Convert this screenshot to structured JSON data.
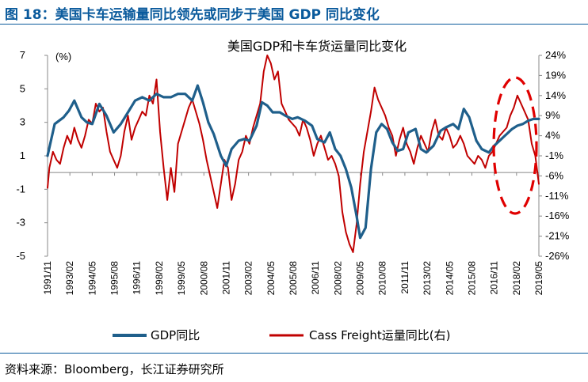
{
  "figure_title": "图 18：美国卡车运输量同比领先或同步于美国 GDP 同比变化",
  "source": "资料来源：Bloomberg，长江证券研究所",
  "chart_data": {
    "type": "line",
    "title": "美国GDP和卡车货运量同比变化",
    "left_unit": "(%)",
    "left_ticks": [
      "7",
      "5",
      "3",
      "1",
      "-1",
      "-3",
      "-5"
    ],
    "right_ticks": [
      "24%",
      "19%",
      "14%",
      "9%",
      "4%",
      "-1%",
      "-6%",
      "-11%",
      "-16%",
      "-21%",
      "-26%"
    ],
    "ylim_left": [
      -5,
      7
    ],
    "ylim_right": [
      -26,
      24
    ],
    "x_ticks": [
      "1991/11",
      "1993/02",
      "1994/05",
      "1995/08",
      "1996/11",
      "1998/02",
      "1999/05",
      "2000/08",
      "2001/11",
      "2003/02",
      "2004/05",
      "2005/08",
      "2006/11",
      "2008/02",
      "2009/05",
      "2010/08",
      "2011/11",
      "2013/02",
      "2014/05",
      "2015/08",
      "2016/11",
      "2018/02",
      "2019/05"
    ],
    "grid": false,
    "legend_position": "bottom",
    "colors": {
      "gdp": "#1f5f8b",
      "freight": "#c00000",
      "annotation": "#e00000"
    },
    "series": [
      {
        "name": "GDP同比",
        "axis": "left",
        "x": [
          1991.9,
          1992.3,
          1992.8,
          1993.1,
          1993.4,
          1993.8,
          1994.1,
          1994.4,
          1994.8,
          1995.2,
          1995.6,
          1996.0,
          1996.4,
          1996.8,
          1997.2,
          1997.6,
          1998.0,
          1998.4,
          1998.8,
          1999.2,
          1999.6,
          2000.0,
          2000.3,
          2000.6,
          2000.9,
          2001.2,
          2001.6,
          2001.9,
          2002.2,
          2002.6,
          2002.9,
          2003.2,
          2003.6,
          2003.9,
          2004.2,
          2004.5,
          2004.9,
          2005.2,
          2005.6,
          2005.9,
          2006.3,
          2006.7,
          2007.0,
          2007.4,
          2007.7,
          2008.0,
          2008.3,
          2008.6,
          2008.9,
          2009.2,
          2009.4,
          2009.7,
          2010.0,
          2010.3,
          2010.6,
          2010.9,
          2011.2,
          2011.5,
          2011.8,
          2012.1,
          2012.5,
          2012.8,
          2013.1,
          2013.5,
          2013.9,
          2014.2,
          2014.6,
          2014.9,
          2015.2,
          2015.5,
          2015.9,
          2016.2,
          2016.6,
          2016.9,
          2017.2,
          2017.6,
          2017.9,
          2018.2,
          2018.5,
          2018.8,
          2019.1,
          2019.4
        ],
        "values": [
          1.0,
          2.9,
          3.3,
          3.7,
          4.3,
          3.3,
          3.0,
          2.9,
          4.1,
          3.4,
          2.4,
          2.9,
          3.6,
          4.3,
          4.5,
          4.3,
          4.7,
          4.5,
          4.5,
          4.7,
          4.7,
          4.3,
          5.2,
          4.2,
          3.0,
          2.3,
          1.0,
          0.4,
          1.4,
          1.9,
          2.0,
          1.9,
          2.8,
          4.2,
          4.0,
          3.6,
          3.6,
          3.4,
          3.2,
          3.3,
          3.1,
          2.8,
          2.0,
          1.8,
          2.4,
          1.4,
          1.0,
          0.2,
          -0.9,
          -2.6,
          -3.9,
          -3.3,
          0.2,
          2.4,
          2.9,
          2.6,
          1.8,
          1.3,
          1.4,
          2.4,
          2.6,
          1.4,
          1.2,
          1.6,
          2.5,
          2.7,
          2.9,
          2.6,
          3.8,
          3.3,
          1.9,
          1.4,
          1.2,
          1.6,
          1.9,
          2.3,
          2.6,
          2.8,
          2.9,
          3.1,
          3.2,
          3.2
        ]
      },
      {
        "name": "Cass Freight运量同比(右)",
        "axis": "right",
        "x": [
          1991.9,
          1992.0,
          1992.2,
          1992.4,
          1992.6,
          1992.8,
          1993.0,
          1993.2,
          1993.4,
          1993.6,
          1993.8,
          1994.0,
          1994.2,
          1994.4,
          1994.6,
          1994.8,
          1995.0,
          1995.2,
          1995.4,
          1995.6,
          1995.8,
          1996.0,
          1996.2,
          1996.4,
          1996.6,
          1996.8,
          1997.0,
          1997.2,
          1997.4,
          1997.6,
          1997.8,
          1998.0,
          1998.2,
          1998.4,
          1998.6,
          1998.8,
          1999.0,
          1999.2,
          1999.4,
          1999.6,
          1999.8,
          2000.0,
          2000.2,
          2000.4,
          2000.6,
          2000.8,
          2001.0,
          2001.2,
          2001.4,
          2001.6,
          2001.8,
          2002.0,
          2002.2,
          2002.4,
          2002.6,
          2002.8,
          2003.0,
          2003.2,
          2003.4,
          2003.6,
          2003.8,
          2004.0,
          2004.2,
          2004.4,
          2004.6,
          2004.8,
          2005.0,
          2005.2,
          2005.4,
          2005.6,
          2005.8,
          2006.0,
          2006.2,
          2006.4,
          2006.6,
          2006.8,
          2007.0,
          2007.2,
          2007.4,
          2007.6,
          2007.8,
          2008.0,
          2008.2,
          2008.4,
          2008.6,
          2008.8,
          2009.0,
          2009.2,
          2009.4,
          2009.6,
          2009.8,
          2010.0,
          2010.2,
          2010.4,
          2010.6,
          2010.8,
          2011.0,
          2011.2,
          2011.4,
          2011.6,
          2011.8,
          2012.0,
          2012.2,
          2012.4,
          2012.6,
          2012.8,
          2013.0,
          2013.2,
          2013.4,
          2013.6,
          2013.8,
          2014.0,
          2014.2,
          2014.4,
          2014.6,
          2014.8,
          2015.0,
          2015.2,
          2015.4,
          2015.6,
          2015.8,
          2016.0,
          2016.2,
          2016.4,
          2016.6,
          2016.8,
          2017.0,
          2017.2,
          2017.4,
          2017.6,
          2017.8,
          2018.0,
          2018.2,
          2018.4,
          2018.6,
          2018.8,
          2019.0,
          2019.2,
          2019.4
        ],
        "values": [
          -9,
          -4,
          0,
          -2,
          -3,
          1,
          4,
          2,
          6,
          3,
          1,
          4,
          8,
          7,
          12,
          10,
          11,
          5,
          0,
          -2,
          -4,
          -1,
          5,
          9,
          3,
          6,
          8,
          10,
          9,
          14,
          12,
          18,
          5,
          -4,
          -12,
          -4,
          -10,
          2,
          5,
          8,
          11,
          13,
          10,
          7,
          3,
          -2,
          -6,
          -10,
          -14,
          -8,
          -2,
          -4,
          -12,
          -8,
          -2,
          0,
          4,
          2,
          6,
          9,
          12,
          20,
          24,
          22,
          18,
          20,
          12,
          10,
          8,
          7,
          6,
          4,
          8,
          6,
          3,
          -1,
          2,
          4,
          1,
          -2,
          -1,
          -3,
          -6,
          -15,
          -20,
          -23,
          -25,
          -18,
          -8,
          0,
          5,
          10,
          16,
          13,
          11,
          9,
          6,
          4,
          -1,
          3,
          6,
          2,
          0,
          -3,
          1,
          4,
          2,
          0,
          5,
          8,
          4,
          3,
          6,
          4,
          1,
          2,
          4,
          2,
          -1,
          -2,
          -3,
          -1,
          -2,
          -4,
          -1,
          0,
          2,
          4,
          5,
          6,
          9,
          11,
          14,
          12,
          10,
          8,
          2,
          -1,
          -8
        ]
      }
    ],
    "annotation": "dashed-ellipse-around-2018-2019"
  }
}
